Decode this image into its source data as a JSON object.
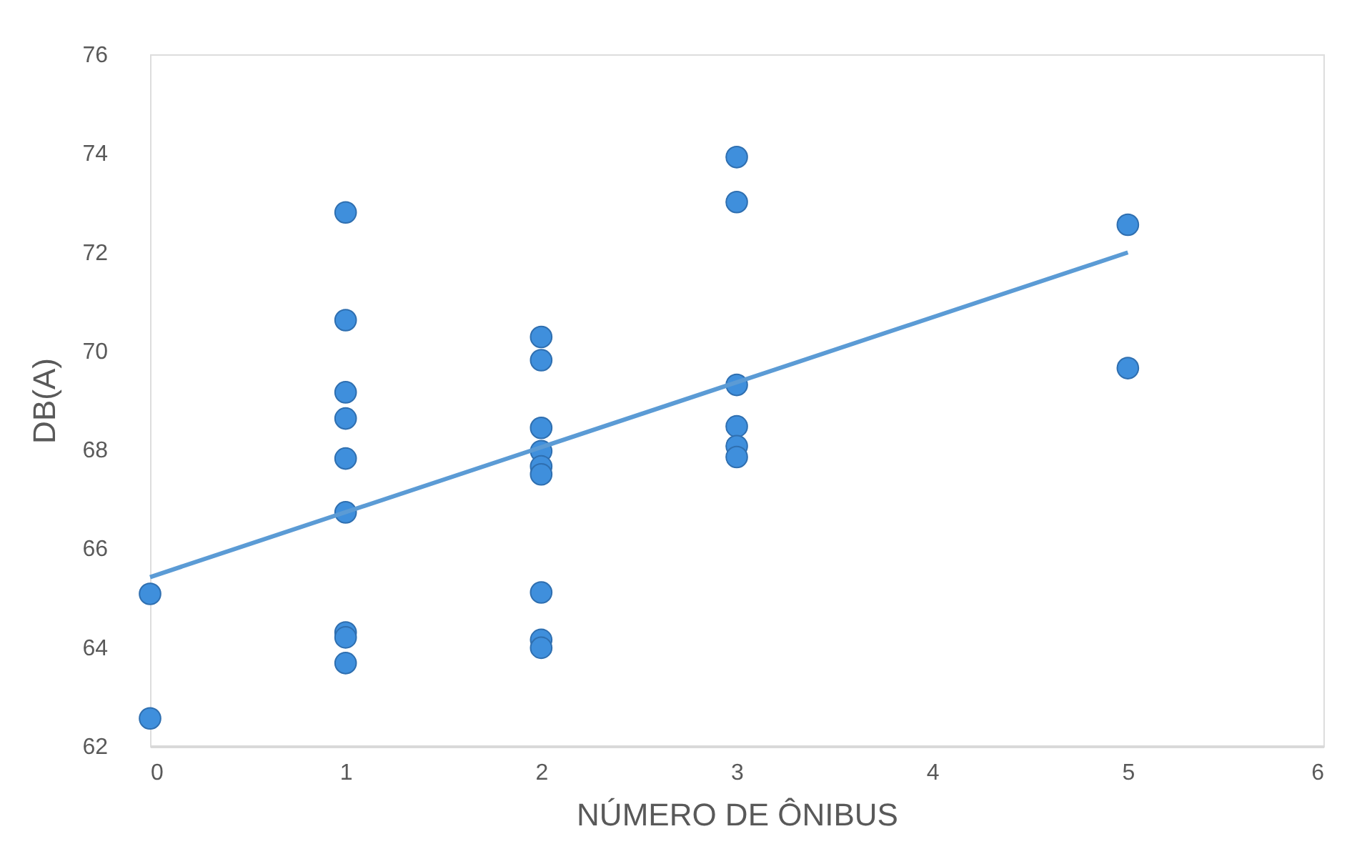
{
  "chart_data": {
    "type": "scatter",
    "xlabel": "NÚMERO DE ÔNIBUS",
    "ylabel": "DB(A)",
    "xlim": [
      0,
      6
    ],
    "ylim": [
      62,
      76
    ],
    "xticks": [
      0,
      1,
      2,
      3,
      4,
      5,
      6
    ],
    "yticks": [
      62,
      64,
      66,
      68,
      70,
      72,
      74,
      76
    ],
    "grid": false,
    "series": [
      {
        "type": "scatter",
        "color": "#3f8fdc",
        "marker": "circle",
        "x": [
          0,
          0,
          1,
          1,
          1,
          1,
          1,
          1,
          1,
          1,
          1,
          2,
          2,
          2,
          2,
          2,
          2,
          2,
          2,
          2,
          3,
          3,
          3,
          3,
          3,
          3,
          5,
          5
        ],
        "values": [
          65.08,
          62.56,
          72.8,
          70.62,
          69.16,
          68.63,
          67.82,
          66.73,
          64.3,
          64.2,
          63.68,
          70.28,
          69.81,
          68.44,
          67.97,
          67.66,
          67.5,
          65.11,
          64.15,
          63.99,
          73.92,
          73.01,
          69.31,
          68.47,
          68.07,
          67.85,
          72.55,
          69.65
        ]
      },
      {
        "type": "line",
        "color": "#5b9bd5",
        "x": [
          0,
          5
        ],
        "values": [
          65.42,
          71.99
        ],
        "line_style": "solid",
        "marker": "none"
      }
    ]
  }
}
